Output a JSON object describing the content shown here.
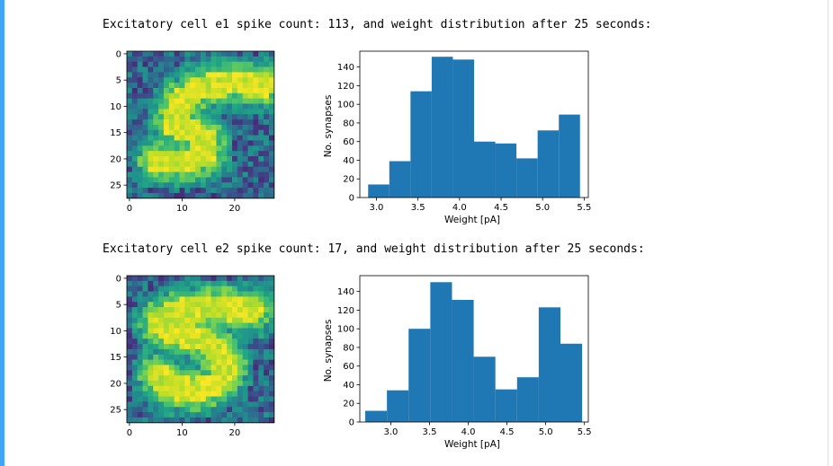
{
  "output_cells": [
    {
      "heading": "Excitatory cell e1 spike count: 113, and weight distribution after 25 seconds:",
      "image_plot": {
        "y_ticks": [
          "0",
          "5",
          "10",
          "15",
          "20",
          "25"
        ],
        "x_ticks": [
          "0",
          "10",
          "20"
        ],
        "colormap": "viridis",
        "image_rows": 28,
        "image_cols": 28,
        "depicted_digit": "5"
      },
      "chart_data": {
        "type": "bar",
        "title": "",
        "xlabel": "Weight [pA]",
        "ylabel": "No. synapses",
        "xlim": [
          2.8,
          5.55
        ],
        "ylim": [
          0,
          157
        ],
        "x_ticks": [
          "3.0",
          "3.5",
          "4.0",
          "4.5",
          "5.0",
          "5.5"
        ],
        "y_ticks": [
          "0",
          "20",
          "40",
          "60",
          "80",
          "100",
          "120",
          "140"
        ],
        "bin_edges": [
          2.9,
          3.155,
          3.41,
          3.665,
          3.92,
          4.175,
          4.43,
          4.685,
          4.94,
          5.195,
          5.45
        ],
        "values": [
          14,
          39,
          114,
          151,
          148,
          60,
          58,
          42,
          72,
          89
        ],
        "bar_color": "#1f77b4"
      }
    },
    {
      "heading": "Excitatory cell e2 spike count: 17, and weight distribution after 25 seconds:",
      "image_plot": {
        "y_ticks": [
          "0",
          "5",
          "10",
          "15",
          "20",
          "25"
        ],
        "x_ticks": [
          "0",
          "10",
          "20"
        ],
        "colormap": "viridis",
        "image_rows": 28,
        "image_cols": 28,
        "depicted_digit": "5"
      },
      "chart_data": {
        "type": "bar",
        "title": "",
        "xlabel": "Weight [pA]",
        "ylabel": "No. synapses",
        "xlim": [
          2.6,
          5.55
        ],
        "ylim": [
          0,
          157
        ],
        "x_ticks": [
          "3.0",
          "3.5",
          "4.0",
          "4.5",
          "5.0",
          "5.5"
        ],
        "y_ticks": [
          "0",
          "20",
          "40",
          "60",
          "80",
          "100",
          "120",
          "140"
        ],
        "bin_edges": [
          2.67,
          2.95,
          3.23,
          3.51,
          3.79,
          4.07,
          4.35,
          4.63,
          4.91,
          5.19,
          5.47
        ],
        "values": [
          12,
          34,
          100,
          150,
          131,
          70,
          35,
          48,
          123,
          84
        ],
        "bar_color": "#1f77b4"
      }
    }
  ]
}
